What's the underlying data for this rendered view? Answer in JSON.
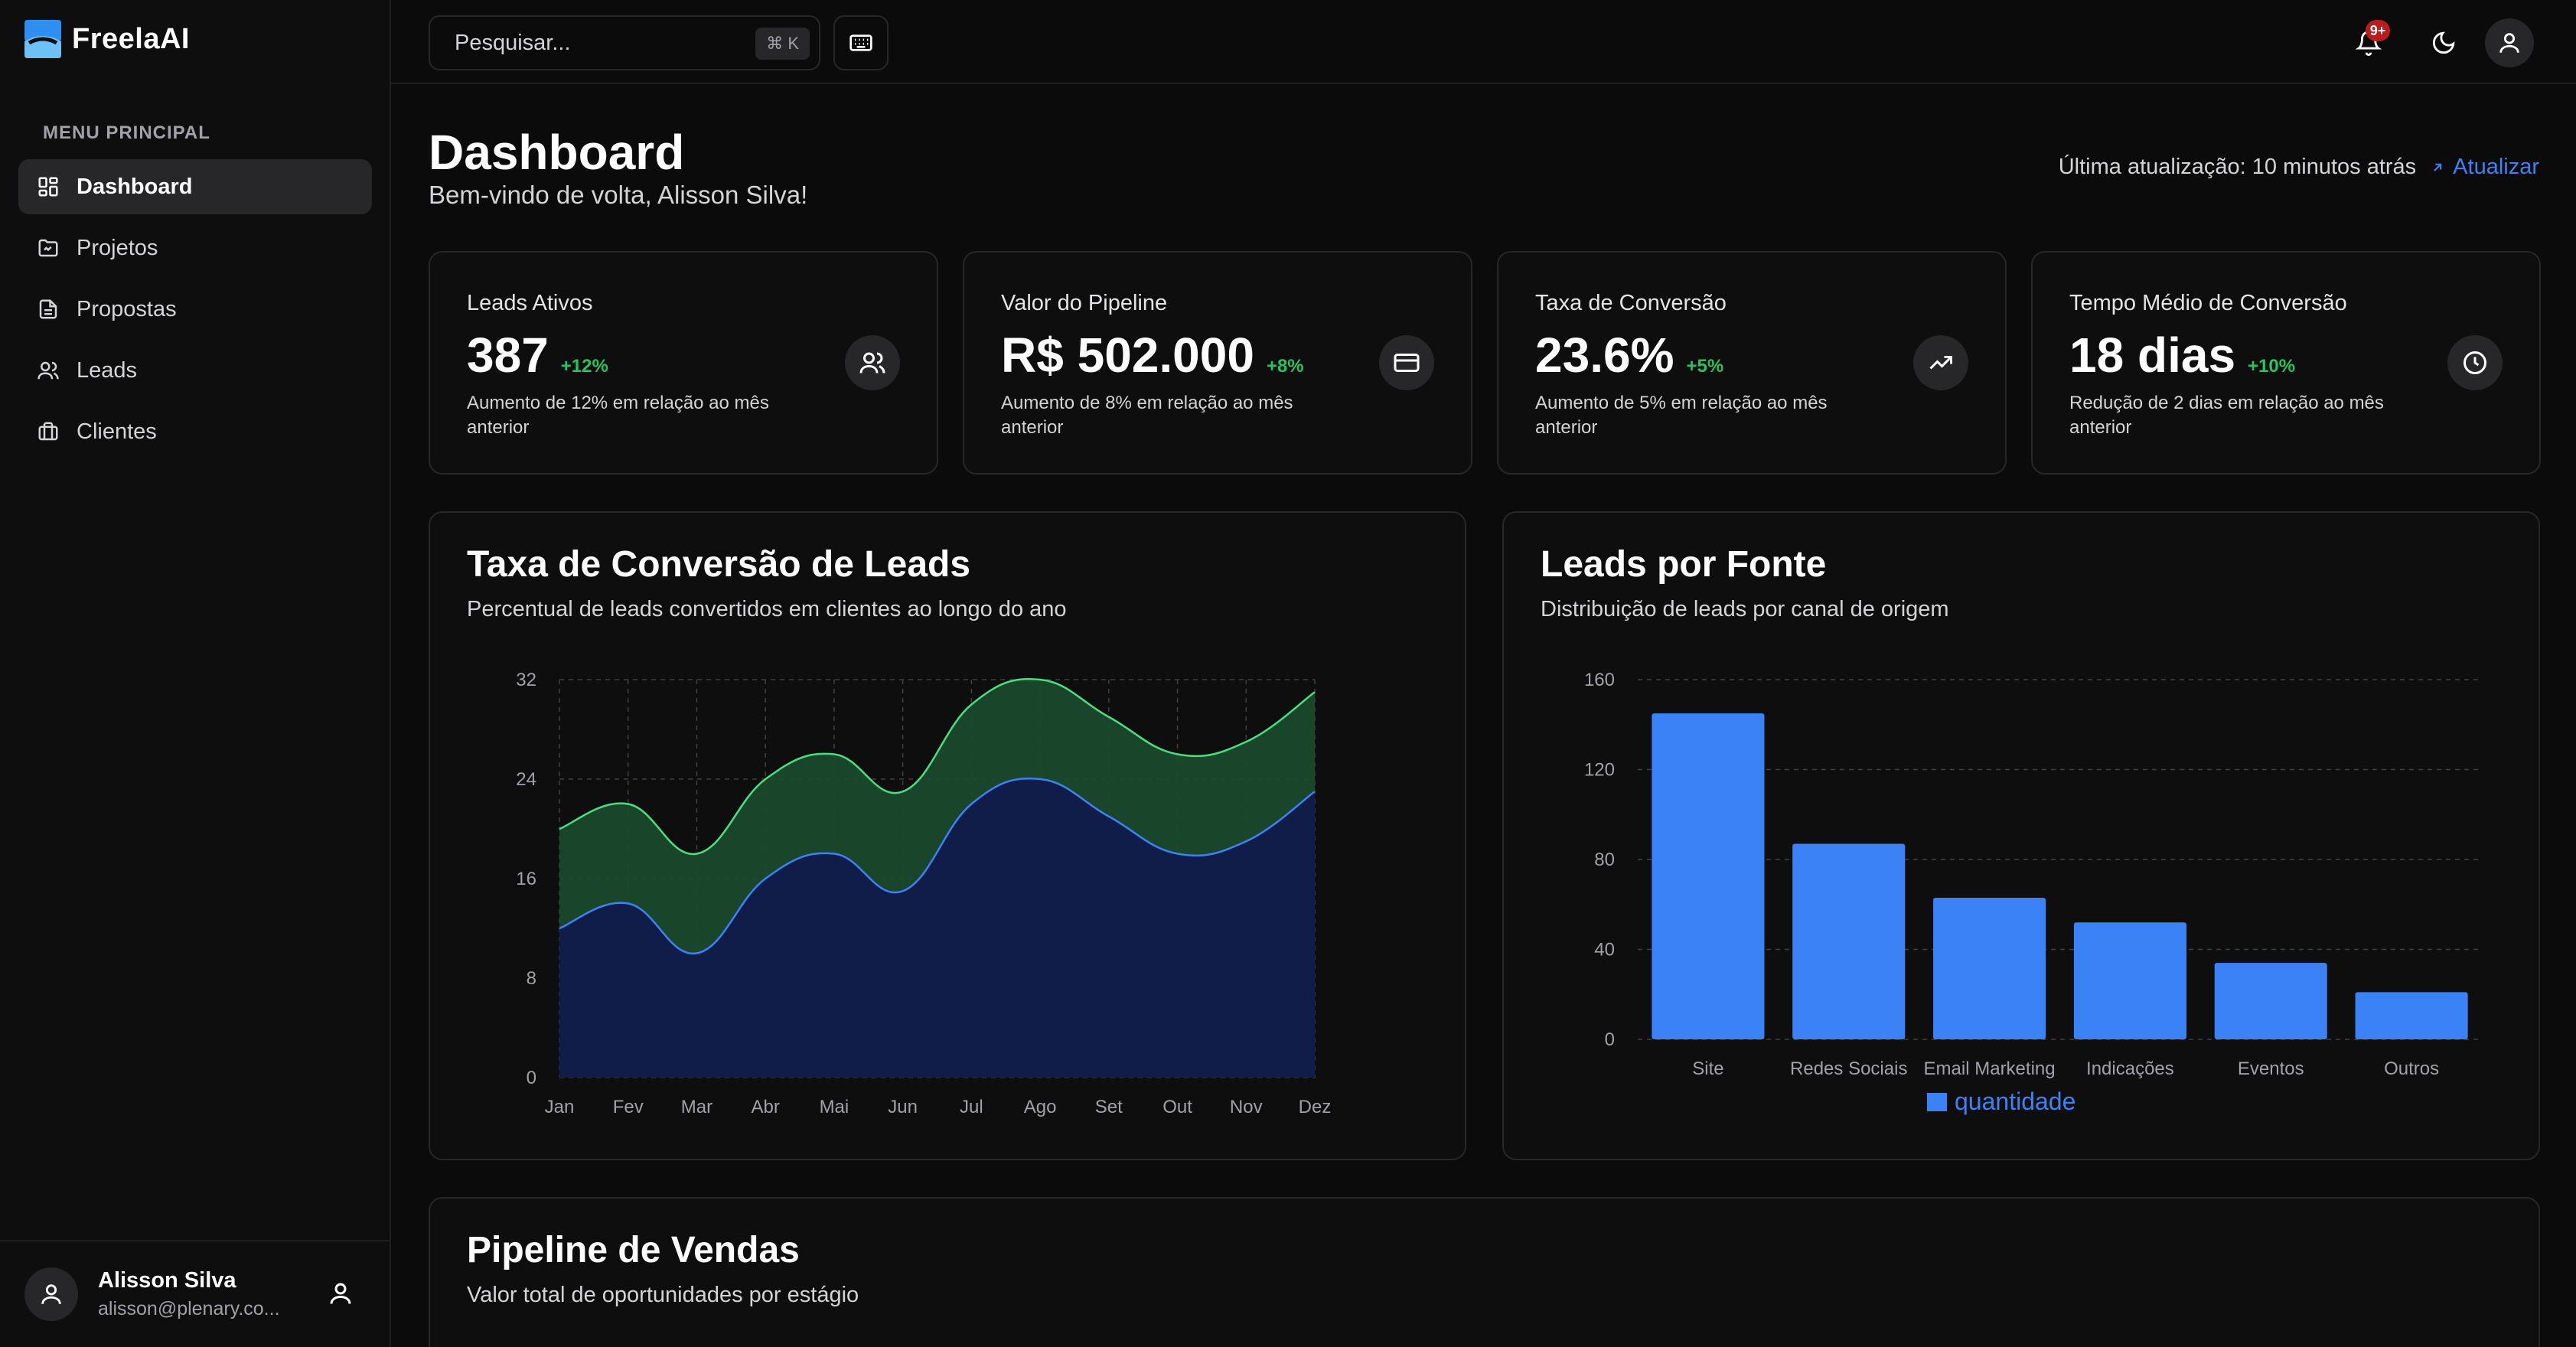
{
  "app": {
    "name": "FreelaAI"
  },
  "sidebar": {
    "menu_title": "MENU PRINCIPAL",
    "items": [
      {
        "label": "Dashboard",
        "icon": "dashboard-icon",
        "active": true
      },
      {
        "label": "Projetos",
        "icon": "folder-icon",
        "active": false
      },
      {
        "label": "Propostas",
        "icon": "file-text-icon",
        "active": false
      },
      {
        "label": "Leads",
        "icon": "users-icon",
        "active": false
      },
      {
        "label": "Clientes",
        "icon": "briefcase-icon",
        "active": false
      }
    ],
    "user": {
      "name": "Alisson Silva",
      "email": "alisson@plenary.co..."
    }
  },
  "topbar": {
    "search_placeholder": "Pesquisar...",
    "shortcut": "⌘ K",
    "notifications_badge": "9+"
  },
  "header": {
    "title": "Dashboard",
    "subtitle": "Bem-vindo de volta, Alisson Silva!",
    "last_update": "Última atualização: 10 minutos atrás",
    "refresh_label": "Atualizar"
  },
  "stats": [
    {
      "label": "Leads Ativos",
      "value": "387",
      "change": "+12%",
      "desc": "Aumento de 12% em relação ao mês anterior",
      "icon": "users-icon"
    },
    {
      "label": "Valor do Pipeline",
      "value": "R$ 502.000",
      "change": "+8%",
      "desc": "Aumento de 8% em relação ao mês anterior",
      "icon": "credit-card-icon"
    },
    {
      "label": "Taxa de Conversão",
      "value": "23.6%",
      "change": "+5%",
      "desc": "Aumento de 5% em relação ao mês anterior",
      "icon": "trending-up-icon"
    },
    {
      "label": "Tempo Médio de Conversão",
      "value": "18 dias",
      "change": "+10%",
      "desc": "Redução de 2 dias em relação ao mês anterior",
      "icon": "clock-icon"
    }
  ],
  "conversion_card": {
    "title": "Taxa de Conversão de Leads",
    "subtitle": "Percentual de leads convertidos em clientes ao longo do ano"
  },
  "source_card": {
    "title": "Leads por Fonte",
    "subtitle": "Distribuição de leads por canal de origem"
  },
  "pipeline_card": {
    "title": "Pipeline de Vendas",
    "subtitle": "Valor total de oportunidades por estágio"
  },
  "colors": {
    "accent": "#3b82f6",
    "positive": "#22c55e",
    "area_green": "#1a4a2c",
    "area_blue": "#111d49"
  },
  "chart_data": [
    {
      "type": "area",
      "categories": [
        "Jan",
        "Fev",
        "Mar",
        "Abr",
        "Mai",
        "Jun",
        "Jul",
        "Ago",
        "Set",
        "Out",
        "Nov",
        "Dez"
      ],
      "series": [
        {
          "values": [
            12,
            14,
            10,
            16,
            18,
            15,
            22,
            24,
            21,
            18,
            19,
            23
          ]
        },
        {
          "values": [
            20,
            22,
            18,
            24,
            26,
            23,
            30,
            32,
            29,
            26,
            27,
            31
          ]
        }
      ],
      "yticks": [
        0,
        8,
        16,
        24,
        32
      ],
      "ylim": [
        0,
        32
      ],
      "grid": true
    },
    {
      "type": "bar",
      "categories": [
        "Site",
        "Redes Sociais",
        "Email Marketing",
        "Indicações",
        "Eventos",
        "Outros"
      ],
      "series": [
        {
          "name": "quantidade",
          "values": [
            145,
            87,
            63,
            52,
            34,
            21
          ]
        }
      ],
      "yticks": [
        0,
        40,
        80,
        120,
        160
      ],
      "ylim": [
        0,
        160
      ],
      "grid": true,
      "legend": "bottom"
    }
  ]
}
